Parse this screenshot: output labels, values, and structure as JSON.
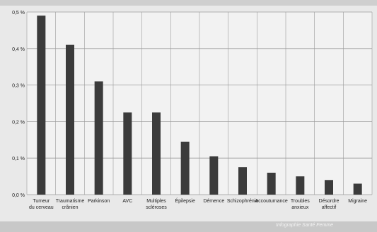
{
  "colors": {
    "bar": "#3b3b3b",
    "grid": "#9a9a9a",
    "plot_bg": "#f2f2f2",
    "page_bg": "#e9e9e9"
  },
  "credit": "Infographie Santé Femme",
  "chart_data": {
    "type": "bar",
    "title": "",
    "xlabel": "",
    "ylabel": "",
    "ylim": [
      0,
      0.5
    ],
    "yunit": "%",
    "yticks": [
      "0,0 %",
      "0,1 %",
      "0,2 %",
      "0,3 %",
      "0,4 %",
      "0,5 %"
    ],
    "categories": [
      [
        "Tumeur",
        "du cerveau"
      ],
      [
        "Traumatisme",
        "crânien"
      ],
      [
        "Parkinson"
      ],
      [
        "AVC"
      ],
      [
        "Multiples",
        "scléroses"
      ],
      [
        "Épilepsie"
      ],
      [
        "Démence"
      ],
      [
        "Schizophrénie"
      ],
      [
        "Accoutumance"
      ],
      [
        "Troubles",
        "anxieux"
      ],
      [
        "Désordre",
        "affectif"
      ],
      [
        "Migraine"
      ]
    ],
    "values": [
      0.49,
      0.41,
      0.31,
      0.225,
      0.225,
      0.145,
      0.105,
      0.075,
      0.06,
      0.05,
      0.04,
      0.03
    ],
    "grid": true,
    "legend": "none"
  }
}
